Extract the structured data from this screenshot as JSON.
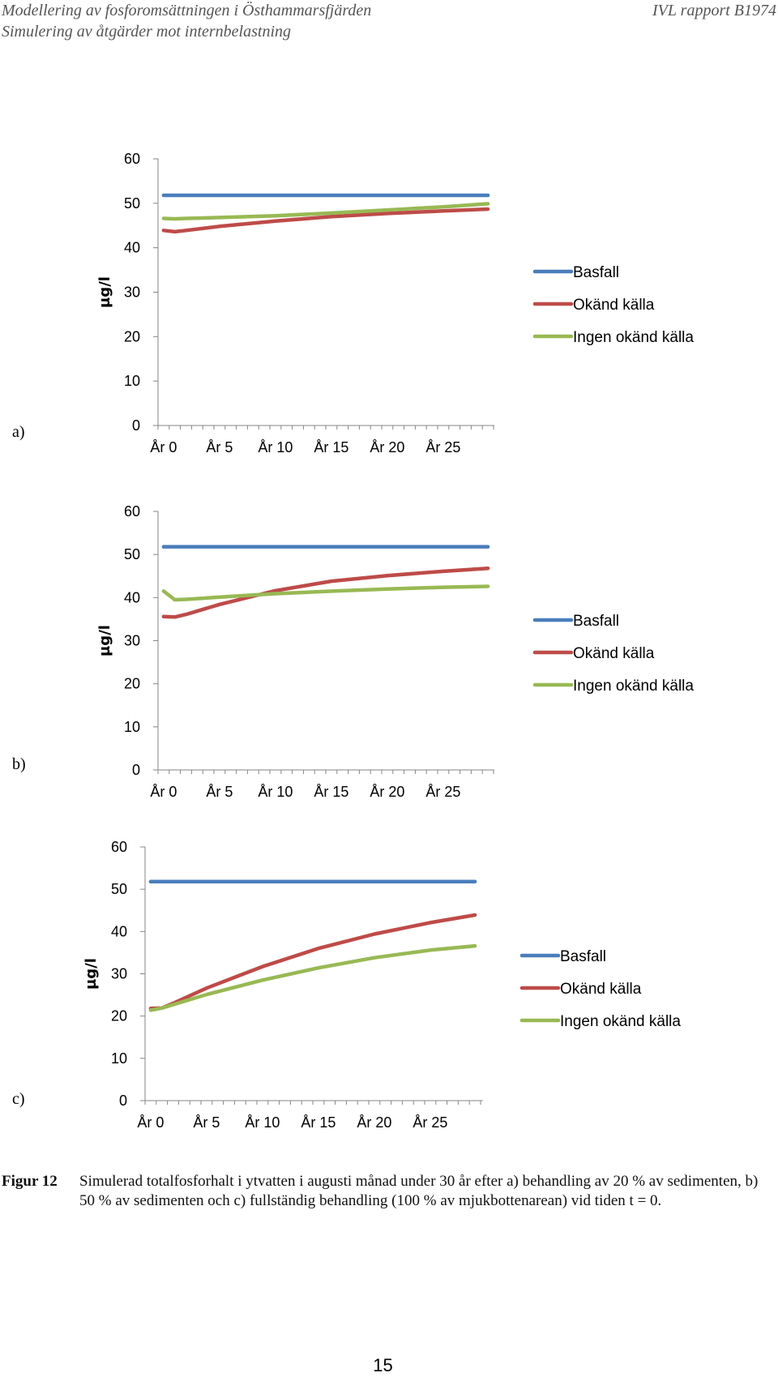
{
  "header": {
    "line1": "Modellering av fosforomsättningen i Östhammarsfjärden",
    "line2": "Simulering av åtgärder mot internbelastning",
    "report": "IVL rapport B1974"
  },
  "colors": {
    "Basfall": "#4a7ebb",
    "Okänd källa": "#be4b48",
    "Ingen okänd källa": "#98b954"
  },
  "chart_data": [
    {
      "type": "line",
      "panel_label": "a)",
      "ylabel": "µg/l",
      "ylim": [
        0,
        60
      ],
      "yticks": [
        "0",
        "10",
        "20",
        "30",
        "40",
        "50",
        "60"
      ],
      "xticks": [
        "År 0",
        "År 5",
        "År 10",
        "År 15",
        "År 20",
        "År 25"
      ],
      "x": [
        0,
        1,
        2,
        5,
        10,
        15,
        20,
        25,
        29
      ],
      "series": [
        {
          "name": "Basfall",
          "values": [
            51.8,
            51.8,
            51.8,
            51.8,
            51.8,
            51.8,
            51.8,
            51.8,
            51.8
          ]
        },
        {
          "name": "Okänd källa",
          "values": [
            43.9,
            43.6,
            43.9,
            44.8,
            46.0,
            47.0,
            47.7,
            48.3,
            48.7
          ]
        },
        {
          "name": "Ingen okänd källa",
          "values": [
            46.6,
            46.5,
            46.6,
            46.8,
            47.2,
            47.8,
            48.5,
            49.2,
            49.9
          ]
        }
      ]
    },
    {
      "type": "line",
      "panel_label": "b)",
      "ylabel": "µg/l",
      "ylim": [
        0,
        60
      ],
      "yticks": [
        "0",
        "10",
        "20",
        "30",
        "40",
        "50",
        "60"
      ],
      "xticks": [
        "År 0",
        "År 5",
        "År 10",
        "År 15",
        "År 20",
        "År 25"
      ],
      "x": [
        0,
        1,
        2,
        5,
        10,
        15,
        20,
        25,
        29
      ],
      "series": [
        {
          "name": "Basfall",
          "values": [
            51.8,
            51.8,
            51.8,
            51.8,
            51.8,
            51.8,
            51.8,
            51.8,
            51.8
          ]
        },
        {
          "name": "Okänd källa",
          "values": [
            35.6,
            35.5,
            36.1,
            38.4,
            41.6,
            43.8,
            45.1,
            46.1,
            46.8
          ]
        },
        {
          "name": "Ingen okänd källa",
          "values": [
            41.5,
            39.5,
            39.6,
            40.1,
            40.9,
            41.5,
            42.0,
            42.4,
            42.6
          ]
        }
      ]
    },
    {
      "type": "line",
      "panel_label": "c)",
      "ylabel": "µg/l",
      "ylim": [
        0,
        60
      ],
      "yticks": [
        "0",
        "10",
        "20",
        "30",
        "40",
        "50",
        "60"
      ],
      "xticks": [
        "År 0",
        "År 5",
        "År 10",
        "År 15",
        "År 20",
        "År 25"
      ],
      "x": [
        0,
        1,
        2,
        5,
        10,
        15,
        20,
        25,
        29
      ],
      "series": [
        {
          "name": "Basfall",
          "values": [
            51.8,
            51.8,
            51.8,
            51.8,
            51.8,
            51.8,
            51.8,
            51.8,
            51.8
          ]
        },
        {
          "name": "Okänd källa",
          "values": [
            21.8,
            21.9,
            23.0,
            26.6,
            31.7,
            36.0,
            39.4,
            42.1,
            43.9
          ]
        },
        {
          "name": "Ingen okänd källa",
          "values": [
            21.4,
            21.9,
            22.7,
            25.1,
            28.5,
            31.4,
            33.8,
            35.6,
            36.6
          ]
        }
      ]
    }
  ],
  "caption": {
    "label": "Figur 12",
    "text": "Simulerad totalfosforhalt i ytvatten i augusti månad under 30 år efter a) behandling av 20 % av sedimenten, b) 50 % av sedimenten och c) fullständig behandling (100 % av mjukbottenarean) vid tiden t = 0."
  },
  "page_number": "15"
}
